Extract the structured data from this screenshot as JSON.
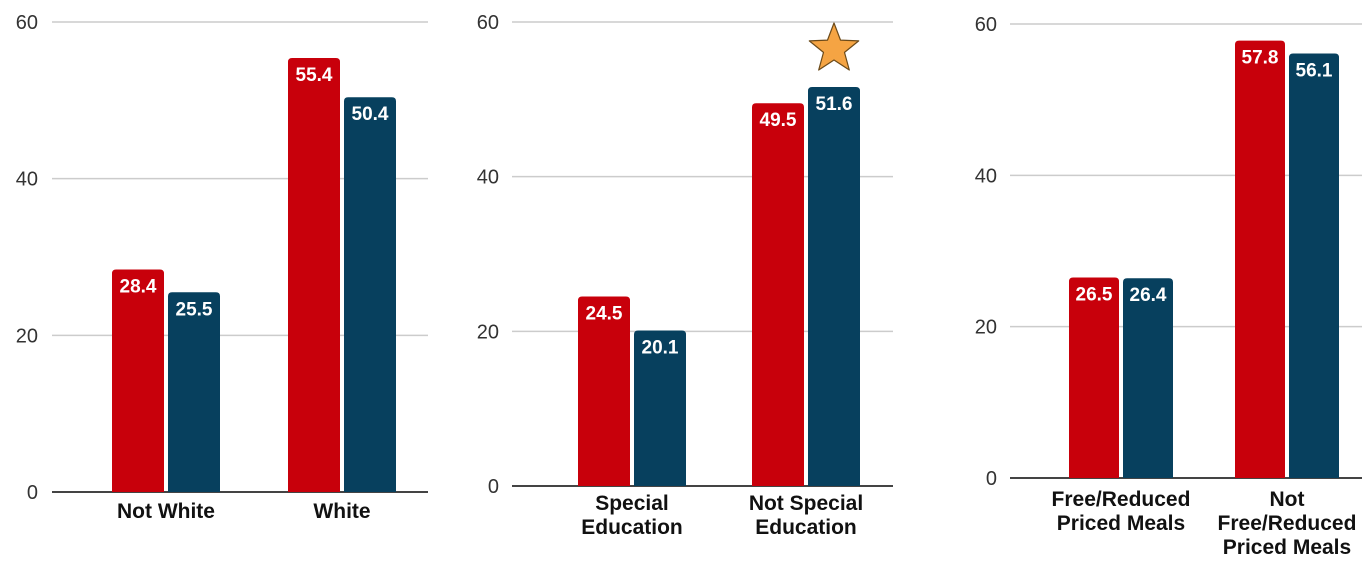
{
  "colors": {
    "series_1": "#c8000b",
    "series_2": "#07405e",
    "grid": "#cccccc",
    "axis": "#444444",
    "star": "#f5a443",
    "star_stroke": "#6b4a1a"
  },
  "chart_data": [
    {
      "type": "bar",
      "categories": [
        [
          "Not White"
        ],
        [
          "White"
        ]
      ],
      "series": [
        {
          "values": [
            28.4,
            55.4
          ]
        },
        {
          "values": [
            25.5,
            50.4
          ]
        }
      ],
      "ylim": [
        0,
        60
      ],
      "yticks": [
        "0",
        "20",
        "40",
        "60"
      ],
      "grid": true,
      "legend": "none"
    },
    {
      "type": "bar",
      "categories": [
        [
          "Special",
          "Education"
        ],
        [
          "Not Special",
          "Education"
        ]
      ],
      "series": [
        {
          "values": [
            24.5,
            49.5
          ]
        },
        {
          "values": [
            20.1,
            51.6
          ]
        }
      ],
      "ylim": [
        0,
        60
      ],
      "yticks": [
        "0",
        "20",
        "40",
        "60"
      ],
      "grid": true,
      "legend": "none",
      "annotation": {
        "icon": "star-icon",
        "category_index": 1,
        "series_index": 1
      }
    },
    {
      "type": "bar",
      "categories": [
        [
          "Free/Reduced",
          "Priced Meals"
        ],
        [
          "Not",
          "Free/Reduced",
          "Priced Meals"
        ]
      ],
      "series": [
        {
          "values": [
            26.5,
            57.8
          ]
        },
        {
          "values": [
            26.4,
            56.1
          ]
        }
      ],
      "ylim": [
        0,
        60
      ],
      "yticks": [
        "0",
        "20",
        "40",
        "60"
      ],
      "grid": true,
      "legend": "none"
    }
  ]
}
